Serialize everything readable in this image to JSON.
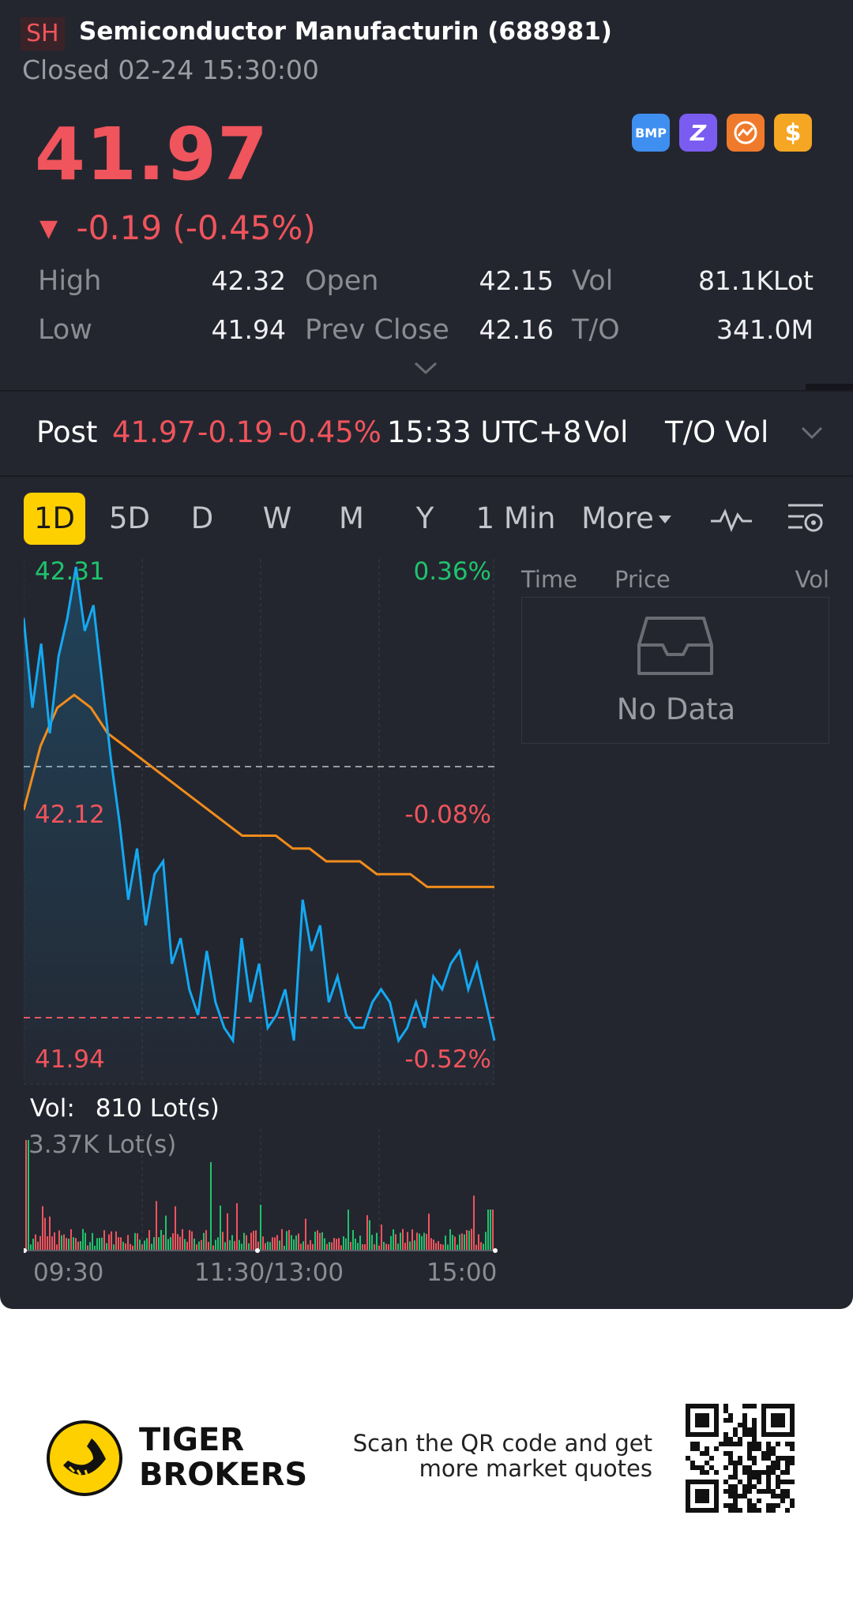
{
  "header": {
    "exchange": "SH",
    "title": "Semiconductor Manufacturin (688981)",
    "status": "Closed 02-24 15:30:00"
  },
  "badges": [
    {
      "name": "bmp-badge-icon",
      "label": "BMP",
      "color": "#3f8ff0"
    },
    {
      "name": "z-badge-icon",
      "label": "Z",
      "color": "#7b5cf0"
    },
    {
      "name": "chart-badge-icon",
      "label": "",
      "color": "#f07a2b"
    },
    {
      "name": "dollar-badge-icon",
      "label": "$",
      "color": "#f5a623"
    }
  ],
  "quote": {
    "price": "41.97",
    "change": "-0.19 (-0.45%)"
  },
  "stats": {
    "high_label": "High",
    "high": "42.32",
    "low_label": "Low",
    "low": "41.94",
    "open_label": "Open",
    "open": "42.15",
    "prev_close_label": "Prev Close",
    "prev_close": "42.16",
    "vol_label": "Vol",
    "vol": "81.1KLot",
    "to_label": "T/O",
    "to": "341.0M"
  },
  "post": {
    "label": "Post",
    "price": "41.97",
    "change": "-0.19",
    "pct": "-0.45%",
    "time": "15:33 UTC+8",
    "vol_label": "Vol",
    "to_vol_label": "T/O Vol"
  },
  "tabs": [
    "1D",
    "5D",
    "D",
    "W",
    "M",
    "Y",
    "1 Min",
    "More"
  ],
  "active_tab": "1D",
  "chart": {
    "top_price": "42.31",
    "top_pct": "0.36%",
    "mid_price": "42.12",
    "mid_pct": "-0.08%",
    "bottom_price": "41.94",
    "bottom_pct": "-0.52%",
    "vol_readout_label": "Vol:",
    "vol_readout_value": "810 Lot(s)",
    "vol_max": "3.37K Lot(s)",
    "time_labels": [
      "09:30",
      "11:30/13:00",
      "15:00"
    ],
    "colors": {
      "price_line": "#14a9f2",
      "avg_line": "#f08c1c",
      "up": "#1fc36d",
      "down": "#f0545c"
    }
  },
  "trades": {
    "col_time": "Time",
    "col_price": "Price",
    "col_vol": "Vol",
    "empty": "No Data"
  },
  "footer": {
    "brand_line1": "TIGER",
    "brand_line2": "BROKERS",
    "qr_text_line1": "Scan the QR code and get",
    "qr_text_line2": "more market quotes"
  },
  "chart_data": {
    "type": "line",
    "ylim": [
      41.94,
      42.31
    ],
    "series": [
      {
        "values": [
          42.27,
          42.2,
          42.25,
          42.18,
          42.24,
          42.27,
          42.31,
          42.26,
          42.28,
          42.22,
          42.16,
          42.11,
          42.05,
          42.09,
          42.03,
          42.07,
          42.08,
          42.0,
          42.02,
          41.98,
          41.96,
          42.01,
          41.97,
          41.95,
          41.94,
          42.02,
          41.97,
          42.0,
          41.95,
          41.96,
          41.98,
          41.94,
          42.05,
          42.01,
          42.03,
          41.97,
          41.99,
          41.96,
          41.95,
          41.95,
          41.97,
          41.98,
          41.97,
          41.94,
          41.95,
          41.97,
          41.95,
          41.99,
          41.98,
          42.0,
          42.01,
          41.98,
          42.0,
          41.97,
          41.94
        ]
      },
      {
        "values": [
          42.12,
          42.17,
          42.2,
          42.21,
          42.2,
          42.18,
          42.17,
          42.16,
          42.15,
          42.14,
          42.13,
          42.12,
          42.11,
          42.1,
          42.1,
          42.1,
          42.09,
          42.09,
          42.08,
          42.08,
          42.08,
          42.07,
          42.07,
          42.07,
          42.06,
          42.06,
          42.06,
          42.06,
          42.06
        ]
      }
    ]
  }
}
